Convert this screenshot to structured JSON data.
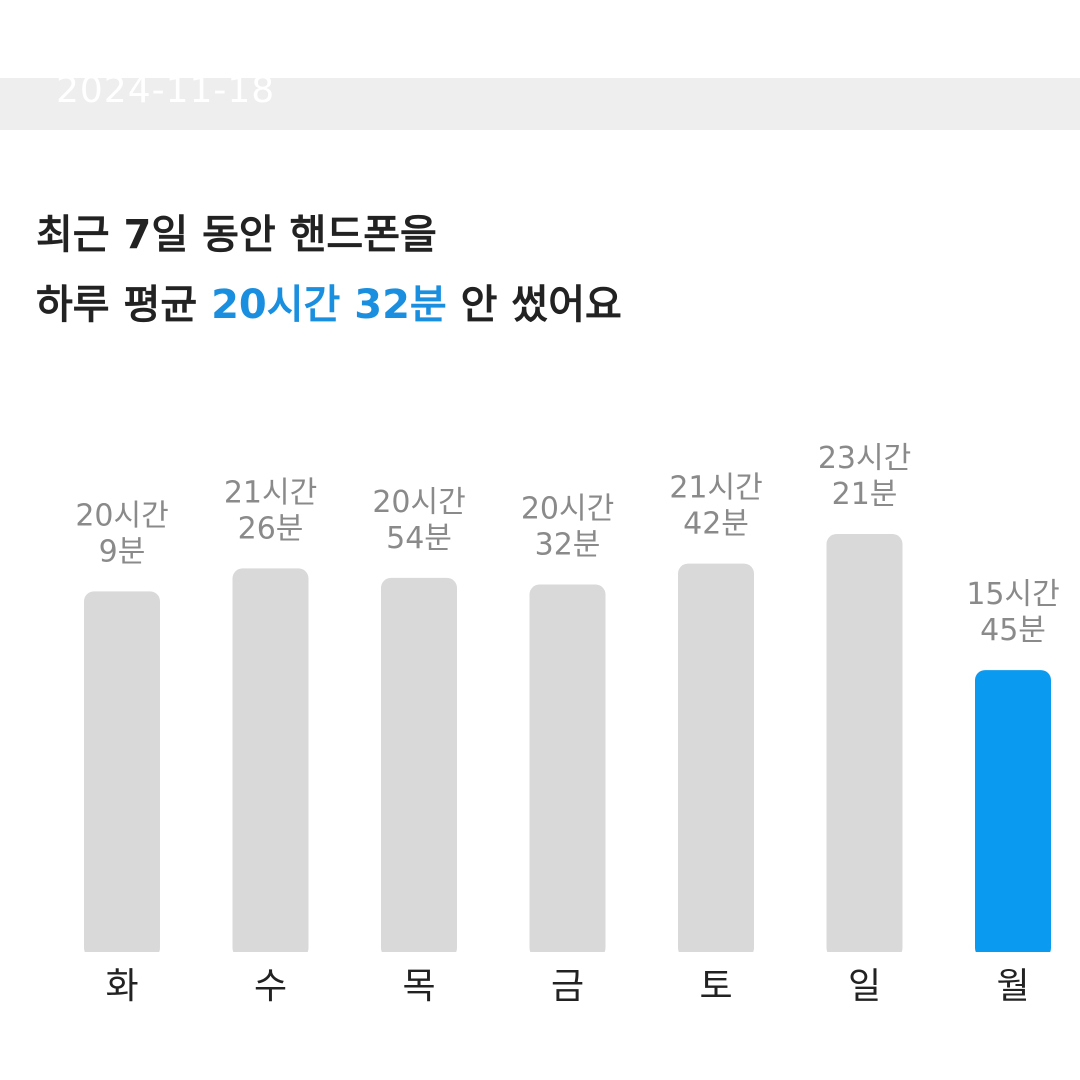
{
  "header": {
    "date": "2024-11-18"
  },
  "headline": {
    "line1": "최근 7일 동안 핸드폰을",
    "line2_prefix": "하루 평균",
    "line2_accent": "20시간 32분",
    "line2_suffix": "안 썼어요"
  },
  "colors": {
    "bar_default": "#d9d9d9",
    "bar_highlight": "#0a9af0",
    "accent_text": "#1a8fe0"
  },
  "chart_data": {
    "type": "bar",
    "categories": [
      "화",
      "수",
      "목",
      "금",
      "토",
      "일",
      "월"
    ],
    "values": [
      20.15,
      21.43,
      20.9,
      20.53,
      21.7,
      23.35,
      15.75
    ],
    "value_labels": [
      [
        "20시간",
        "9분"
      ],
      [
        "21시간",
        "26분"
      ],
      [
        "20시간",
        "54분"
      ],
      [
        "20시간",
        "32분"
      ],
      [
        "21시간",
        "42분"
      ],
      [
        "23시간",
        "21분"
      ],
      [
        "15시간",
        "45분"
      ]
    ],
    "highlight_index": 6,
    "ylim": [
      0,
      24
    ],
    "grid": false,
    "title": "",
    "xlabel": "",
    "ylabel": ""
  }
}
